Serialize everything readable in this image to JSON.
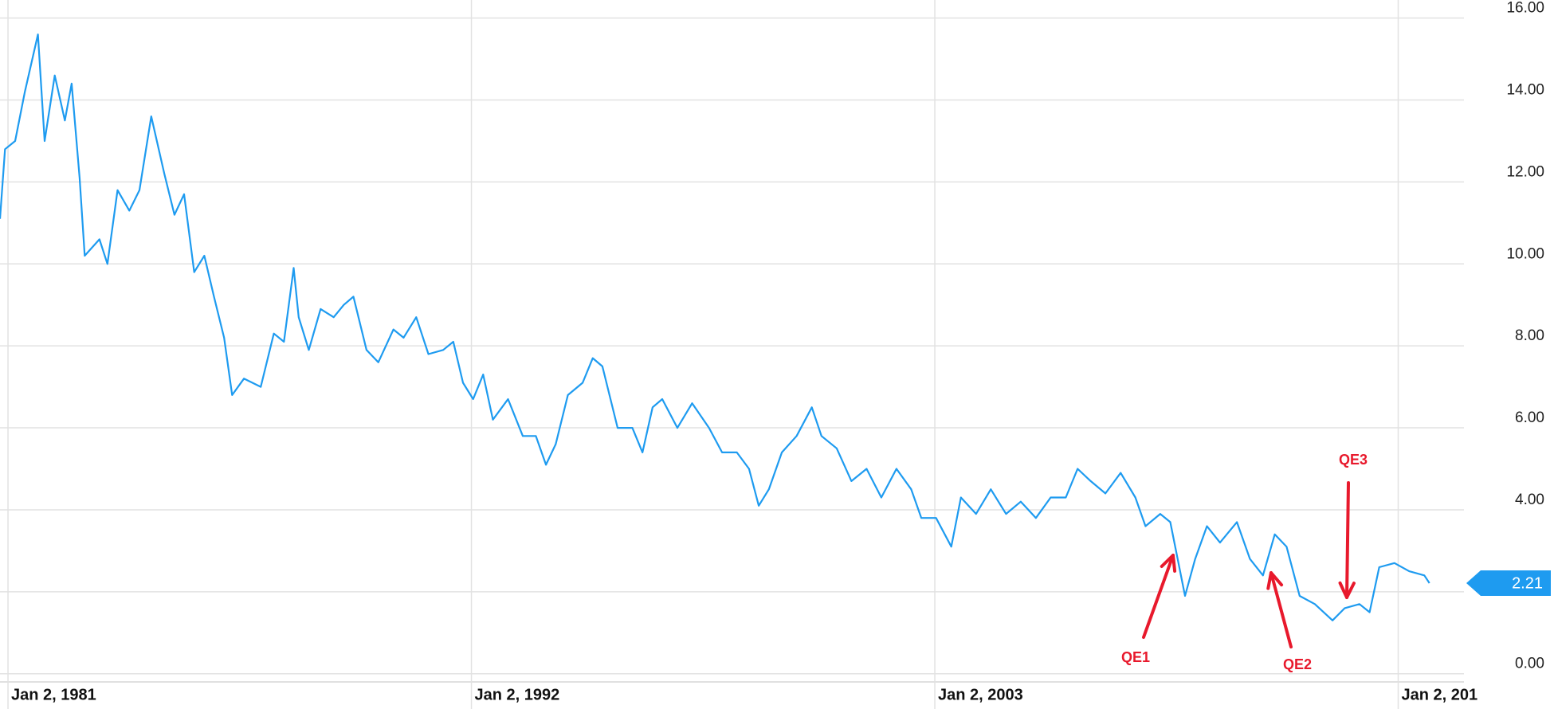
{
  "chart_data": {
    "type": "line",
    "x": [
      1980.81,
      1980.93,
      1981.17,
      1981.4,
      1981.71,
      1981.87,
      1982.11,
      1982.35,
      1982.51,
      1982.7,
      1982.82,
      1983.17,
      1983.36,
      1983.6,
      1983.88,
      1984.12,
      1984.4,
      1984.71,
      1984.95,
      1985.18,
      1985.42,
      1985.66,
      1985.89,
      1986.13,
      1986.32,
      1986.6,
      1987.0,
      1987.31,
      1987.55,
      1987.78,
      1987.9,
      1988.14,
      1988.42,
      1988.73,
      1988.97,
      1989.2,
      1989.51,
      1989.79,
      1990.15,
      1990.39,
      1990.69,
      1990.98,
      1991.33,
      1991.57,
      1991.8,
      1992.04,
      1992.28,
      1992.51,
      1992.87,
      1993.22,
      1993.53,
      1993.77,
      1994.0,
      1994.29,
      1994.64,
      1994.88,
      1995.11,
      1995.47,
      1995.82,
      1996.06,
      1996.3,
      1996.53,
      1996.89,
      1997.24,
      1997.64,
      1997.95,
      1998.3,
      1998.59,
      1998.82,
      1999.06,
      1999.37,
      1999.72,
      2000.08,
      2000.31,
      2000.67,
      2001.02,
      2001.38,
      2001.73,
      2002.09,
      2002.44,
      2002.68,
      2003.03,
      2003.39,
      2003.62,
      2003.98,
      2004.33,
      2004.69,
      2005.04,
      2005.4,
      2005.75,
      2006.11,
      2006.39,
      2006.7,
      2007.05,
      2007.41,
      2007.76,
      2008.0,
      2008.35,
      2008.59,
      2008.94,
      2009.18,
      2009.46,
      2009.77,
      2010.17,
      2010.48,
      2010.79,
      2011.07,
      2011.35,
      2011.66,
      2012.02,
      2012.44,
      2012.73,
      2013.08,
      2013.32,
      2013.55,
      2013.91,
      2014.26,
      2014.62,
      2014.74
    ],
    "values": [
      11.1,
      12.8,
      13.0,
      14.2,
      15.6,
      13.0,
      14.6,
      13.5,
      14.4,
      12.1,
      10.2,
      10.6,
      10.0,
      11.8,
      11.3,
      11.8,
      13.6,
      12.2,
      11.2,
      11.7,
      9.8,
      10.2,
      9.2,
      8.2,
      6.8,
      7.2,
      7.0,
      8.3,
      8.1,
      9.9,
      8.7,
      7.9,
      8.9,
      8.7,
      9.0,
      9.2,
      7.9,
      7.6,
      8.4,
      8.2,
      8.7,
      7.8,
      7.9,
      8.1,
      7.1,
      6.7,
      7.3,
      6.2,
      6.7,
      5.8,
      5.8,
      5.1,
      5.6,
      6.8,
      7.1,
      7.7,
      7.5,
      6.0,
      6.0,
      5.4,
      6.5,
      6.7,
      6.0,
      6.6,
      6.0,
      5.4,
      5.4,
      5.0,
      4.1,
      4.5,
      5.4,
      5.8,
      6.5,
      5.8,
      5.5,
      4.7,
      5.0,
      4.3,
      5.0,
      4.5,
      3.8,
      3.8,
      3.1,
      4.3,
      3.9,
      4.5,
      3.9,
      4.2,
      3.8,
      4.3,
      4.3,
      5.0,
      4.7,
      4.4,
      4.9,
      4.3,
      3.6,
      3.9,
      3.7,
      1.9,
      2.8,
      3.6,
      3.2,
      3.7,
      2.8,
      2.4,
      3.4,
      3.1,
      1.9,
      1.7,
      1.3,
      1.6,
      1.7,
      1.5,
      2.6,
      2.7,
      2.5,
      2.4,
      2.21
    ],
    "color": "#1e9bf0",
    "xlim": [
      1980.81,
      2015.56
    ],
    "xticks": [
      {
        "value": 1981.0,
        "label": "Jan 2, 1981"
      },
      {
        "value": 1992.0,
        "label": "Jan 2, 1992"
      },
      {
        "value": 2003.0,
        "label": "Jan 2, 2003"
      },
      {
        "value": 2014.0,
        "label": "Jan 2, 201"
      }
    ],
    "ylim": [
      -0.2,
      16.44
    ],
    "yticks": [
      {
        "value": 0,
        "label": "0.00"
      },
      {
        "value": 2,
        "label": "2.00"
      },
      {
        "value": 4,
        "label": "4.00"
      },
      {
        "value": 6,
        "label": "6.00"
      },
      {
        "value": 8,
        "label": "8.00"
      },
      {
        "value": 10,
        "label": "10.00"
      },
      {
        "value": 12,
        "label": "12.00"
      },
      {
        "value": 14,
        "label": "14.00"
      },
      {
        "value": 16,
        "label": "16.00"
      }
    ],
    "grid": true,
    "last_value": 2.21,
    "annotations": [
      {
        "text": "QE1"
      },
      {
        "text": "QE2"
      },
      {
        "text": "QE3"
      }
    ]
  }
}
